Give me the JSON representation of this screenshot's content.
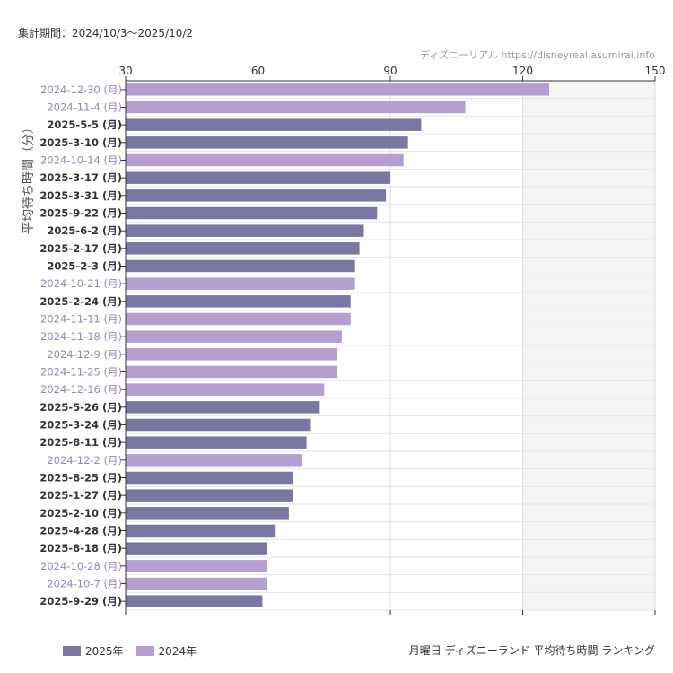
{
  "header": {
    "period": "集計期間：2024/10/3～2025/10/2",
    "source": "ディズニーリアル https://disneyreal.asumirai.info"
  },
  "footer": {
    "title": "月曜日 ディズニーランド 平均待ち時間 ランキング"
  },
  "colors": {
    "series_2025": "#7b77a3",
    "series_2024": "#b49fd0",
    "label_2025": "#333333",
    "label_2024": "#9a82c2"
  },
  "chart_data": {
    "type": "bar",
    "orientation": "horizontal",
    "ylabel": "平均待ち時間（分）",
    "xlim": [
      30,
      150
    ],
    "xticks": [
      30,
      60,
      90,
      120,
      150
    ],
    "shaded_range": [
      120,
      150
    ],
    "grid": true,
    "legend_position": "bottom-left",
    "series": [
      {
        "name": "2025年",
        "key": "2025"
      },
      {
        "name": "2024年",
        "key": "2024"
      }
    ],
    "categories": [
      "2024-12-30 (月)",
      "2024-11-4 (月)",
      "2025-5-5 (月)",
      "2025-3-10 (月)",
      "2024-10-14 (月)",
      "2025-3-17 (月)",
      "2025-3-31 (月)",
      "2025-9-22 (月)",
      "2025-6-2 (月)",
      "2025-2-17 (月)",
      "2025-2-3 (月)",
      "2024-10-21 (月)",
      "2025-2-24 (月)",
      "2024-11-11 (月)",
      "2024-11-18 (月)",
      "2024-12-9 (月)",
      "2024-11-25 (月)",
      "2024-12-16 (月)",
      "2025-5-26 (月)",
      "2025-3-24 (月)",
      "2025-8-11 (月)",
      "2024-12-2 (月)",
      "2025-8-25 (月)",
      "2025-1-27 (月)",
      "2025-2-10 (月)",
      "2025-4-28 (月)",
      "2025-8-18 (月)",
      "2024-10-28 (月)",
      "2024-10-7 (月)",
      "2025-9-29 (月)"
    ],
    "values": [
      126,
      107,
      97,
      94,
      93,
      90,
      89,
      87,
      84,
      83,
      82,
      82,
      81,
      81,
      79,
      78,
      78,
      75,
      74,
      72,
      71,
      70,
      68,
      68,
      67,
      64,
      62,
      62,
      62,
      61
    ],
    "year": [
      "2024",
      "2024",
      "2025",
      "2025",
      "2024",
      "2025",
      "2025",
      "2025",
      "2025",
      "2025",
      "2025",
      "2024",
      "2025",
      "2024",
      "2024",
      "2024",
      "2024",
      "2024",
      "2025",
      "2025",
      "2025",
      "2024",
      "2025",
      "2025",
      "2025",
      "2025",
      "2025",
      "2024",
      "2024",
      "2025"
    ]
  }
}
